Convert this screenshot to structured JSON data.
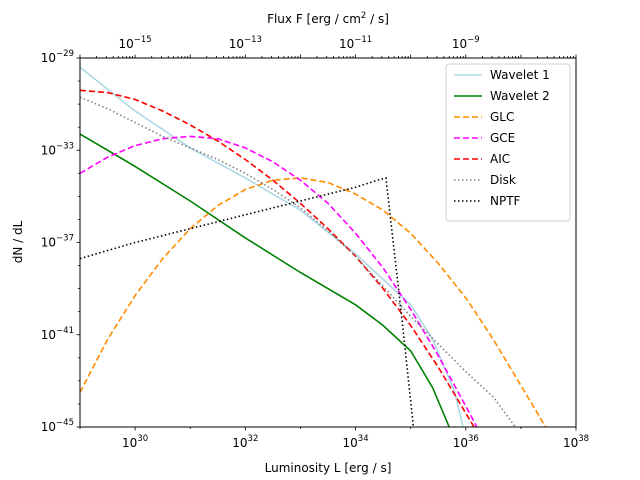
{
  "chart_data": {
    "type": "line",
    "xscale": "log",
    "yscale": "log",
    "xlim_exp": [
      29,
      38
    ],
    "ylim_exp": [
      -45,
      -29
    ],
    "xlabel": "Luminosity L [erg / s]",
    "ylabel": "dN / dL",
    "top_axis": {
      "label": "Flux F [erg / cm² / s]",
      "ticks": [
        {
          "base": "10",
          "exp": "−15",
          "value_exp": -15
        },
        {
          "base": "10",
          "exp": "−13",
          "value_exp": -13
        },
        {
          "base": "10",
          "exp": "−11",
          "value_exp": -11
        },
        {
          "base": "10",
          "exp": "−9",
          "value_exp": -9
        }
      ],
      "flux_offset_exp": -45.0
    },
    "x_ticks": [
      {
        "base": "10",
        "exp": "30",
        "value_exp": 30
      },
      {
        "base": "10",
        "exp": "32",
        "value_exp": 32
      },
      {
        "base": "10",
        "exp": "34",
        "value_exp": 34
      },
      {
        "base": "10",
        "exp": "36",
        "value_exp": 36
      },
      {
        "base": "10",
        "exp": "38",
        "value_exp": 38
      }
    ],
    "y_ticks": [
      {
        "base": "10",
        "exp": "−29",
        "value_exp": -29
      },
      {
        "base": "10",
        "exp": "−33",
        "value_exp": -33
      },
      {
        "base": "10",
        "exp": "−37",
        "value_exp": -37
      },
      {
        "base": "10",
        "exp": "−41",
        "value_exp": -41
      },
      {
        "base": "10",
        "exp": "−45",
        "value_exp": -45
      }
    ],
    "legend_position": "top-right",
    "series": [
      {
        "name": "Wavelet 1",
        "color": "#add8e6",
        "dash": "solid",
        "points": [
          [
            29.0,
            -29.4
          ],
          [
            30.0,
            -31.3
          ],
          [
            31.0,
            -32.9
          ],
          [
            32.0,
            -34.2
          ],
          [
            33.0,
            -35.6
          ],
          [
            34.0,
            -37.5
          ],
          [
            34.5,
            -38.6
          ],
          [
            35.0,
            -39.7
          ],
          [
            35.4,
            -41.2
          ],
          [
            35.8,
            -43.5
          ],
          [
            35.95,
            -45.0
          ]
        ]
      },
      {
        "name": "Wavelet 2",
        "color": "#008000",
        "dash": "solid",
        "points": [
          [
            29.0,
            -32.3
          ],
          [
            30.0,
            -33.7
          ],
          [
            31.0,
            -35.2
          ],
          [
            32.0,
            -36.8
          ],
          [
            33.0,
            -38.3
          ],
          [
            34.0,
            -39.7
          ],
          [
            34.5,
            -40.6
          ],
          [
            35.0,
            -41.7
          ],
          [
            35.4,
            -43.3
          ],
          [
            35.7,
            -45.0
          ]
        ]
      },
      {
        "name": "GLC",
        "color": "#ff8c00",
        "dash": "dash",
        "points": [
          [
            29.0,
            -43.5
          ],
          [
            29.5,
            -41.2
          ],
          [
            30.0,
            -39.3
          ],
          [
            30.5,
            -37.7
          ],
          [
            31.0,
            -36.4
          ],
          [
            31.5,
            -35.4
          ],
          [
            32.0,
            -34.7
          ],
          [
            32.5,
            -34.3
          ],
          [
            33.0,
            -34.2
          ],
          [
            33.5,
            -34.4
          ],
          [
            34.0,
            -34.9
          ],
          [
            34.5,
            -35.6
          ],
          [
            35.0,
            -36.6
          ],
          [
            35.5,
            -37.9
          ],
          [
            36.0,
            -39.4
          ],
          [
            36.5,
            -41.2
          ],
          [
            37.0,
            -43.2
          ],
          [
            37.45,
            -45.0
          ]
        ]
      },
      {
        "name": "GCE",
        "color": "#ff00ff",
        "dash": "dash",
        "points": [
          [
            29.0,
            -34.0
          ],
          [
            29.5,
            -33.3
          ],
          [
            30.0,
            -32.8
          ],
          [
            30.5,
            -32.5
          ],
          [
            31.0,
            -32.4
          ],
          [
            31.5,
            -32.5
          ],
          [
            32.0,
            -32.9
          ],
          [
            32.5,
            -33.5
          ],
          [
            33.0,
            -34.3
          ],
          [
            33.5,
            -35.3
          ],
          [
            34.0,
            -36.6
          ],
          [
            34.5,
            -38.1
          ],
          [
            35.0,
            -39.9
          ],
          [
            35.5,
            -41.9
          ],
          [
            36.0,
            -44.1
          ],
          [
            36.2,
            -45.0
          ]
        ]
      },
      {
        "name": "AIC",
        "color": "#ff0000",
        "dash": "dash",
        "points": [
          [
            29.0,
            -30.4
          ],
          [
            29.5,
            -30.5
          ],
          [
            30.0,
            -30.8
          ],
          [
            30.5,
            -31.3
          ],
          [
            31.0,
            -31.9
          ],
          [
            31.5,
            -32.6
          ],
          [
            32.0,
            -33.4
          ],
          [
            32.5,
            -34.3
          ],
          [
            33.0,
            -35.3
          ],
          [
            33.5,
            -36.4
          ],
          [
            34.0,
            -37.6
          ],
          [
            34.5,
            -39.0
          ],
          [
            35.0,
            -40.6
          ],
          [
            35.5,
            -42.4
          ],
          [
            36.0,
            -44.4
          ],
          [
            36.15,
            -45.0
          ]
        ]
      },
      {
        "name": "Disk",
        "color": "#808080",
        "dash": "dot",
        "points": [
          [
            29.0,
            -30.7
          ],
          [
            29.5,
            -31.2
          ],
          [
            30.0,
            -31.8
          ],
          [
            30.5,
            -32.4
          ],
          [
            31.0,
            -32.9
          ],
          [
            31.5,
            -33.4
          ],
          [
            32.0,
            -34.0
          ],
          [
            32.5,
            -34.7
          ],
          [
            33.0,
            -35.5
          ],
          [
            33.5,
            -36.5
          ],
          [
            34.0,
            -37.6
          ],
          [
            34.5,
            -38.9
          ],
          [
            35.0,
            -40.2
          ],
          [
            35.5,
            -41.4
          ],
          [
            36.0,
            -42.6
          ],
          [
            36.5,
            -43.7
          ],
          [
            36.9,
            -45.0
          ]
        ]
      },
      {
        "name": "NPTF",
        "color": "#000000",
        "dash": "dot",
        "points": [
          [
            29.0,
            -37.7
          ],
          [
            30.0,
            -37.0
          ],
          [
            31.0,
            -36.4
          ],
          [
            32.0,
            -35.8
          ],
          [
            33.0,
            -35.2
          ],
          [
            34.0,
            -34.6
          ],
          [
            34.4,
            -34.3
          ],
          [
            34.55,
            -34.2
          ],
          [
            34.85,
            -40.5
          ],
          [
            35.05,
            -45.0
          ]
        ]
      }
    ]
  }
}
